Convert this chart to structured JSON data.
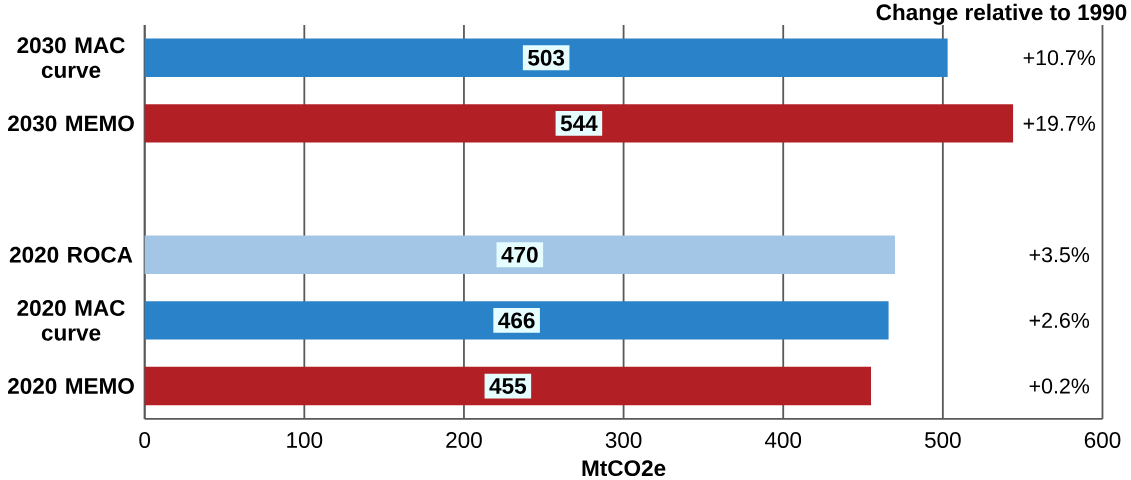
{
  "chart_data": {
    "type": "bar",
    "orientation": "horizontal",
    "xlabel": "MtCO2e",
    "categories": [
      "2030 MAC curve",
      "2030 MEMO",
      null,
      "2020 ROCA",
      "2020 MAC curve",
      "2020 MEMO"
    ],
    "values": [
      503,
      544,
      null,
      470,
      466,
      455
    ],
    "colors": [
      "#2a82c8",
      "#b22025",
      "#ffffff",
      "#a4c6e6",
      "#2a82c8",
      "#b22025"
    ],
    "data_labels": true,
    "xlim": [
      0,
      600
    ],
    "xticks": [
      0,
      100,
      200,
      300,
      400,
      500,
      600
    ],
    "grid": "x",
    "annotations": [
      "Change relative to 1990",
      "+10.7%",
      "+19.7%",
      "+3.5%",
      "+2.6%",
      "+0.2%"
    ]
  }
}
